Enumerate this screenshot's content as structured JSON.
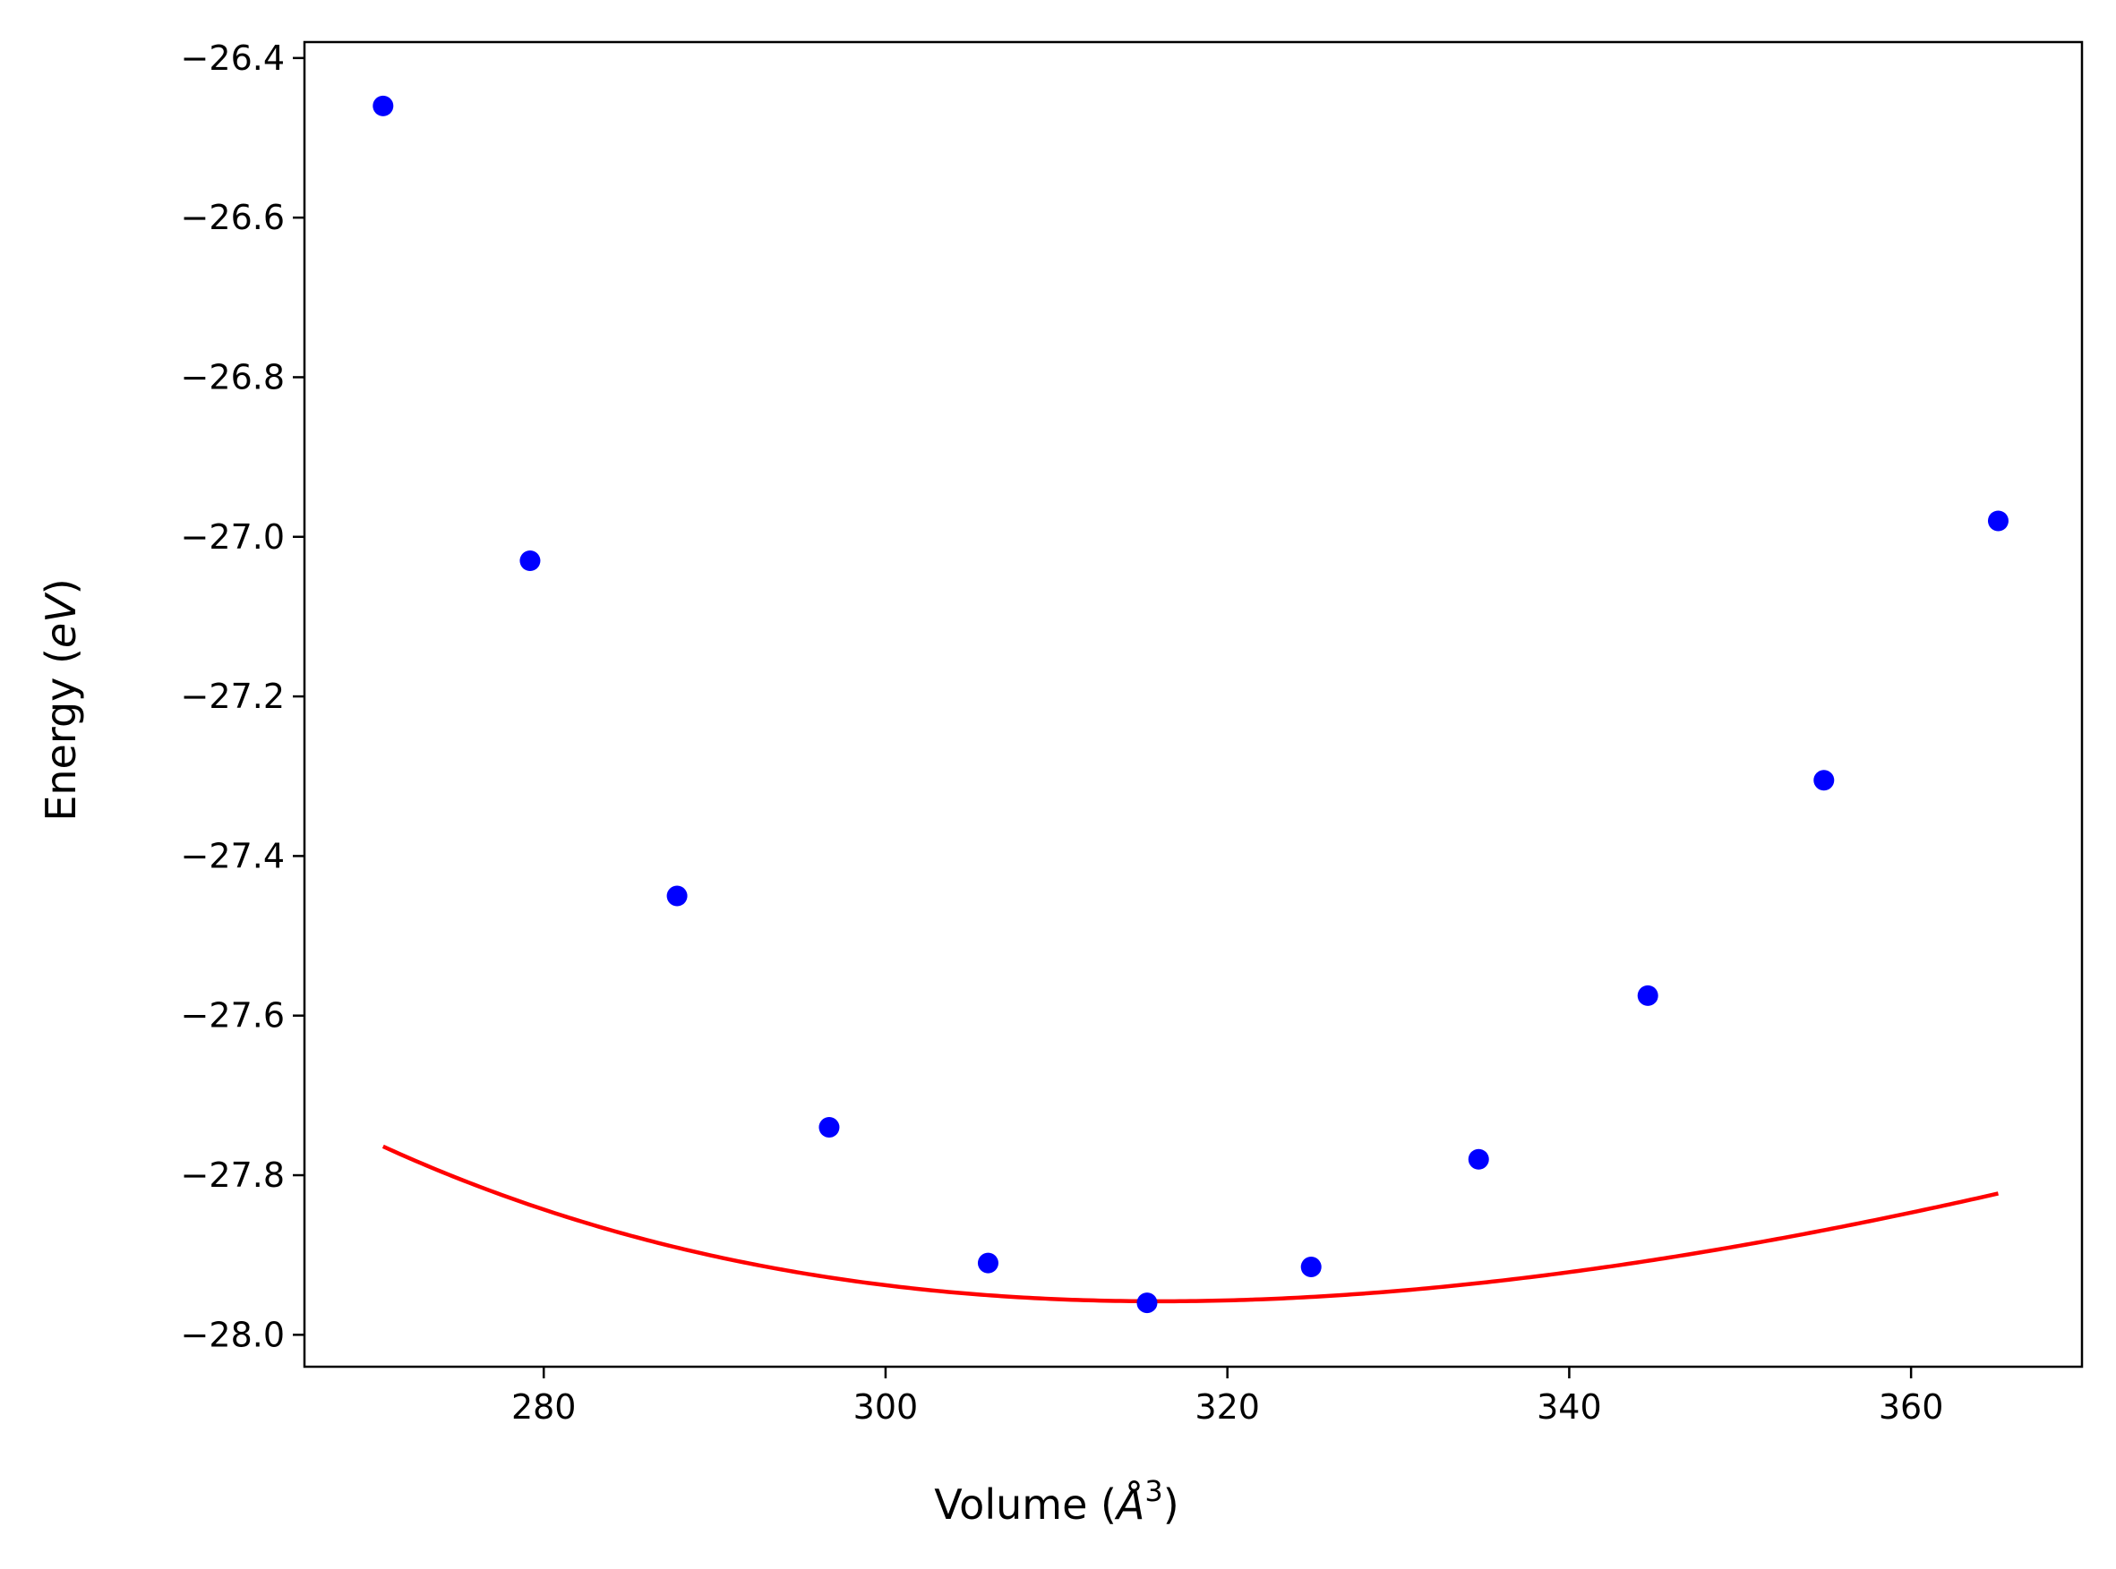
{
  "chart_data": {
    "type": "scatter",
    "title": "",
    "xlabel": "Volume (",
    "xlabel_math": "Å",
    "xlabel_sup": "3",
    "xlabel_close": ")",
    "ylabel": "Energy (",
    "ylabel_math": "eV",
    "ylabel_close": ")",
    "xlim": [
      266,
      370
    ],
    "ylim": [
      -28.04,
      -26.38
    ],
    "xticks": [
      280,
      300,
      320,
      340,
      360
    ],
    "xtick_labels": [
      "280",
      "300",
      "320",
      "340",
      "360"
    ],
    "yticks": [
      -28.0,
      -27.8,
      -27.6,
      -27.4,
      -27.2,
      -27.0,
      -26.8,
      -26.6,
      -26.4
    ],
    "ytick_labels": [
      "−28.0",
      "−27.8",
      "−27.6",
      "−27.4",
      "−27.2",
      "−27.0",
      "−26.8",
      "−26.6",
      "−26.4"
    ],
    "grid": false,
    "series": [
      {
        "kind": "scatter",
        "color": "#0000ff",
        "x": [
          270.6,
          279.2,
          287.8,
          296.7,
          306.0,
          315.3,
          324.9,
          334.7,
          344.6,
          354.9,
          365.1
        ],
        "y": [
          -26.46,
          -27.03,
          -27.45,
          -27.74,
          -27.91,
          -27.96,
          -27.915,
          -27.78,
          -27.575,
          -27.305,
          -26.98
        ]
      },
      {
        "kind": "line",
        "color": "#ff0000",
        "fit": "birch-murnaghan",
        "E0": -27.958,
        "V0": 316.0,
        "B0": 0.0455,
        "Bp": 4.2
      }
    ]
  }
}
